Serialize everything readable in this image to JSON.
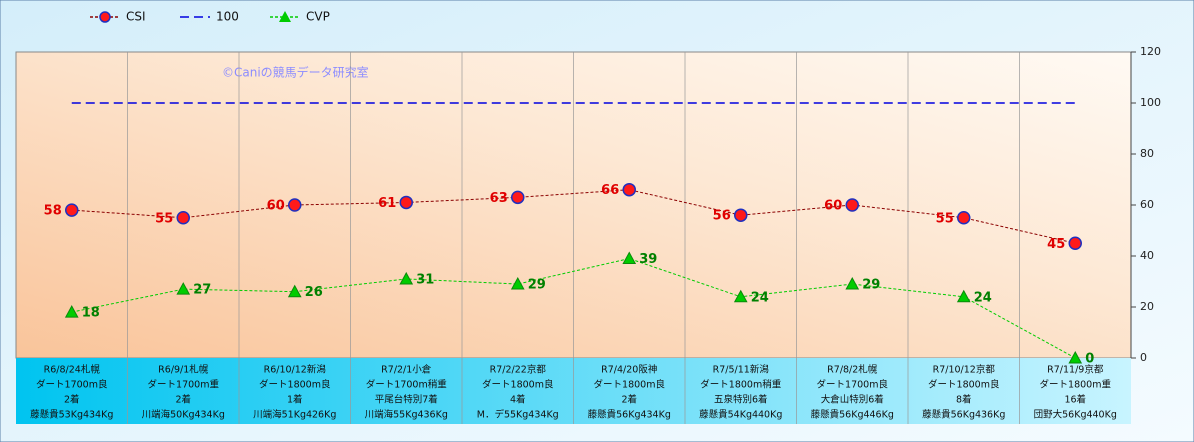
{
  "chart_data": {
    "type": "line",
    "watermark": "©Caniの競馬データ研究室",
    "categories": [
      [
        "R6/8/24札幌",
        "ダート1700m良",
        "2着",
        "藤懸貴53Kg434Kg"
      ],
      [
        "R6/9/1札幌",
        "ダート1700m重",
        "2着",
        "川端海50Kg434Kg"
      ],
      [
        "R6/10/12新潟",
        "ダート1800m良",
        "1着",
        "川端海51Kg426Kg"
      ],
      [
        "R7/2/1小倉",
        "ダート1700m稍重",
        "平尾台特別7着",
        "川端海55Kg436Kg"
      ],
      [
        "R7/2/22京都",
        "ダート1800m良",
        "4着",
        "M．デ55Kg434Kg"
      ],
      [
        "R7/4/20阪神",
        "ダート1800m良",
        "2着",
        "藤懸貴56Kg434Kg"
      ],
      [
        "R7/5/11新潟",
        "ダート1800m稍重",
        "五泉特別6着",
        "藤懸貴54Kg440Kg"
      ],
      [
        "R7/8/2札幌",
        "ダート1700m良",
        "大倉山特別6着",
        "藤懸貴56Kg446Kg"
      ],
      [
        "R7/10/12京都",
        "ダート1800m良",
        "8着",
        "藤懸貴56Kg436Kg"
      ],
      [
        "R7/11/9京都",
        "ダート1800m重",
        "16着",
        "団野大56Kg440Kg"
      ]
    ],
    "series": [
      {
        "name": "CSI",
        "color": "#8b0000",
        "marker": "circle",
        "labels": "left",
        "values": [
          58,
          55,
          60,
          61,
          63,
          66,
          56,
          60,
          55,
          45
        ]
      },
      {
        "name": "100",
        "color": "#0000e0",
        "marker": "none",
        "values": [
          100,
          100,
          100,
          100,
          100,
          100,
          100,
          100,
          100,
          100
        ]
      },
      {
        "name": "CVP",
        "color": "#00cc00",
        "marker": "triangle",
        "labels": "right",
        "values": [
          18,
          27,
          26,
          31,
          29,
          39,
          24,
          29,
          24,
          0
        ]
      }
    ],
    "ylim": [
      0,
      120
    ],
    "yticks": [
      0,
      20,
      40,
      60,
      80,
      100,
      120
    ],
    "grid": false
  }
}
